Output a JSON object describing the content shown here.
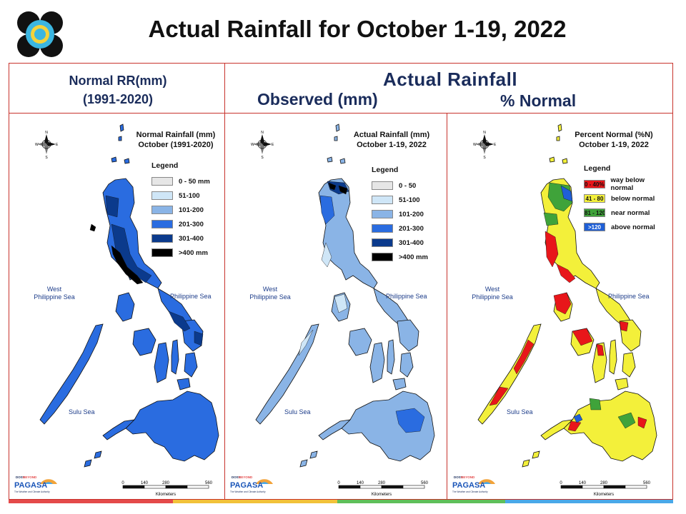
{
  "title": "Actual Rainfall for October 1-19, 2022",
  "headers": {
    "left_line1": "Normal RR(mm)",
    "left_line2": "(1991-2020)",
    "right_main": "Actual Rainfall",
    "observed": "Observed (mm)",
    "percent": "% Normal"
  },
  "panels": [
    {
      "title_line1": "Normal Rainfall (mm)",
      "title_line2": "October (1991-2020)",
      "legend_title": "Legend",
      "legend": [
        {
          "label": "0 - 50 mm",
          "color": "#e6e6e6"
        },
        {
          "label": "51-100",
          "color": "#cfe6f7"
        },
        {
          "label": "101-200",
          "color": "#8ab4e6"
        },
        {
          "label": "201-300",
          "color": "#2a6ce0"
        },
        {
          "label": "301-400",
          "color": "#0b3a8c"
        },
        {
          "label": ">400 mm",
          "color": "#000000"
        }
      ],
      "sea_west": "West\nPhilippine Sea",
      "sea_east": "Philippine Sea",
      "sea_south": "Sulu Sea",
      "fill": "#2a6ce0"
    },
    {
      "title_line1": "Actual Rainfall (mm)",
      "title_line2": "October 1-19, 2022",
      "legend_title": "Legend",
      "legend": [
        {
          "label": "0 - 50",
          "color": "#e6e6e6"
        },
        {
          "label": "51-100",
          "color": "#cfe6f7"
        },
        {
          "label": "101-200",
          "color": "#8ab4e6"
        },
        {
          "label": "201-300",
          "color": "#2a6ce0"
        },
        {
          "label": "301-400",
          "color": "#0b3a8c"
        },
        {
          "label": ">400 mm",
          "color": "#000000"
        }
      ],
      "sea_west": "West\nPhilippine Sea",
      "sea_east": "Philippine Sea",
      "sea_south": "Sulu Sea",
      "fill": "#8ab4e6"
    },
    {
      "title_line1": "Percent Normal (%N)",
      "title_line2": "October 1-19, 2022",
      "legend_title": "Legend",
      "legend": [
        {
          "swatch": "0 - 40%",
          "label": "way below normal",
          "color": "#e8161a"
        },
        {
          "swatch": "41 - 80",
          "label": "below normal",
          "color": "#f3f03a"
        },
        {
          "swatch": "81 - 120",
          "label": "near normal",
          "color": "#3fa33a"
        },
        {
          "swatch": ">120",
          "label": "above normal",
          "color": "#1f5fd6"
        }
      ],
      "sea_west": "West\nPhilippine Sea",
      "sea_east": "Philippine Sea",
      "sea_south": "Sulu Sea",
      "fill": "#f3f03a"
    }
  ],
  "scale": {
    "ticks": [
      "0",
      "140",
      "280",
      "560"
    ],
    "unit": "Kilometers"
  },
  "compass": {
    "n": "N",
    "s": "S",
    "e": "E",
    "w": "W"
  },
  "branding": {
    "line1": "DOST",
    "line2": "BEYOND",
    "name": "PAGASA",
    "tagline": "The Weather and Climate Authority"
  },
  "colors": {
    "frame": "#c8332d",
    "header_text": "#1a2c5b"
  }
}
